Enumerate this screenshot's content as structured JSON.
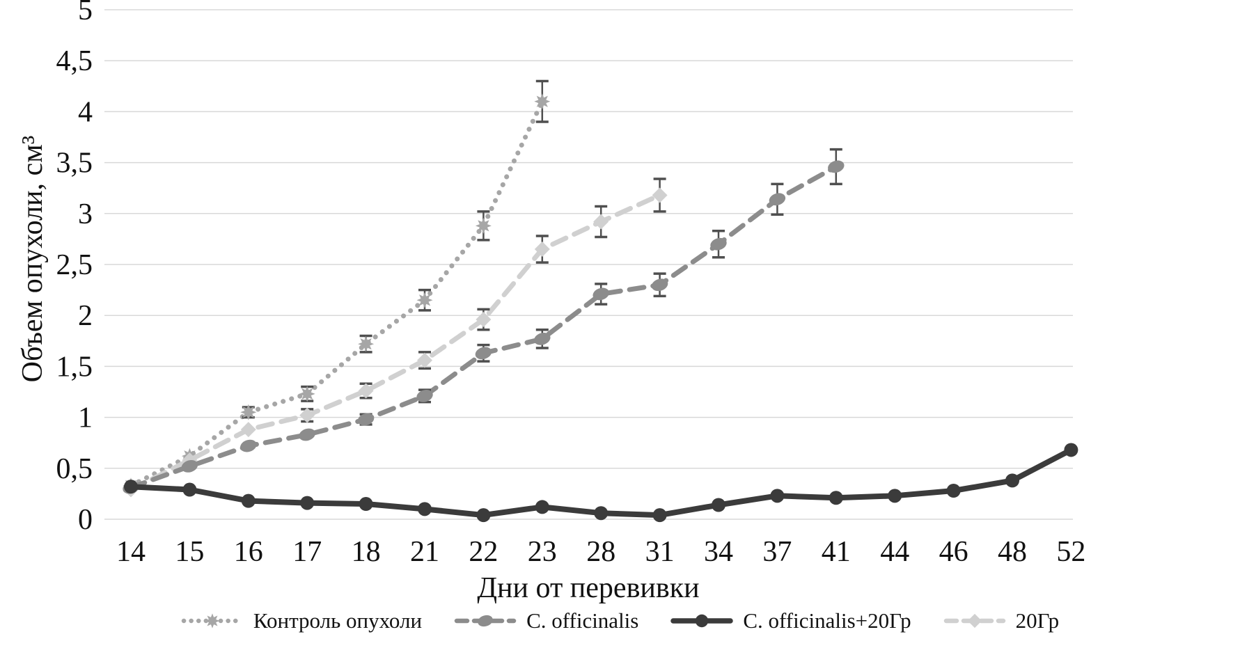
{
  "chart_data": {
    "type": "line",
    "title": "",
    "xlabel": "Дни от перевивки",
    "ylabel": "Объем опухоли, см³",
    "categories": [
      14,
      15,
      16,
      17,
      18,
      21,
      22,
      23,
      28,
      31,
      34,
      37,
      41,
      44,
      46,
      48,
      52
    ],
    "ylim": [
      0,
      5
    ],
    "ytick_step": 0.5,
    "ytick_labels": [
      "0",
      "0,5",
      "1",
      "1,5",
      "2",
      "2,5",
      "3",
      "3,5",
      "4",
      "4,5",
      "5"
    ],
    "grid": true,
    "legend_position": "bottom",
    "gridline_color": "#d8d8d8",
    "error_bar_color": "#4f4f4f",
    "text_color": "#111111",
    "series": [
      {
        "name": "Контроль опухоли",
        "style": "dotted",
        "marker": "star",
        "color": "#a6a6a6",
        "values": [
          0.33,
          0.62,
          1.05,
          1.23,
          1.72,
          2.15,
          2.88,
          4.1
        ],
        "errors": [
          0,
          0,
          0.05,
          0.07,
          0.08,
          0.1,
          0.14,
          0.2
        ]
      },
      {
        "name": "C. officinalis",
        "style": "dashed",
        "marker": "oval",
        "color": "#8c8c8c",
        "values": [
          0.31,
          0.52,
          0.72,
          0.83,
          0.98,
          1.21,
          1.63,
          1.77,
          2.21,
          2.3,
          2.7,
          3.14,
          3.46
        ],
        "errors": [
          0,
          0,
          0,
          0,
          0.05,
          0.06,
          0.08,
          0.09,
          0.1,
          0.11,
          0.13,
          0.15,
          0.17
        ]
      },
      {
        "name": "C. officinalis+20Гр",
        "style": "solid",
        "marker": "circle",
        "color": "#3b3b3b",
        "values": [
          0.32,
          0.29,
          0.18,
          0.16,
          0.15,
          0.1,
          0.04,
          0.12,
          0.06,
          0.04,
          0.14,
          0.23,
          0.21,
          0.23,
          0.28,
          0.38,
          0.68
        ],
        "errors": [
          0,
          0,
          0,
          0,
          0,
          0,
          0,
          0,
          0,
          0,
          0,
          0,
          0,
          0,
          0,
          0,
          0
        ]
      },
      {
        "name": "20Гр",
        "style": "dashed",
        "marker": "diamond",
        "color": "#d0d0d0",
        "values": [
          0.29,
          0.58,
          0.88,
          1.02,
          1.26,
          1.56,
          1.96,
          2.65,
          2.92,
          3.18
        ],
        "errors": [
          0,
          0,
          0,
          0.06,
          0.07,
          0.08,
          0.1,
          0.13,
          0.15,
          0.16
        ]
      }
    ]
  }
}
